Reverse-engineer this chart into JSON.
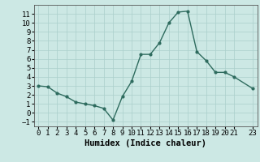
{
  "x": [
    0,
    1,
    2,
    3,
    4,
    5,
    6,
    7,
    8,
    9,
    10,
    11,
    12,
    13,
    14,
    15,
    16,
    17,
    18,
    19,
    20,
    21,
    23
  ],
  "y": [
    3.0,
    2.9,
    2.2,
    1.8,
    1.2,
    1.0,
    0.8,
    0.5,
    -0.8,
    1.8,
    3.5,
    6.5,
    6.5,
    7.8,
    10.0,
    11.2,
    11.3,
    6.8,
    5.8,
    4.5,
    4.5,
    4.0,
    2.7
  ],
  "line_color": "#2e6b5e",
  "marker": "o",
  "marker_size": 2.0,
  "linewidth": 1.0,
  "xlabel": "Humidex (Indice chaleur)",
  "xlim": [
    -0.5,
    23.5
  ],
  "ylim": [
    -1.5,
    12.0
  ],
  "yticks": [
    -1,
    0,
    1,
    2,
    3,
    4,
    5,
    6,
    7,
    8,
    9,
    10,
    11
  ],
  "xticks": [
    0,
    1,
    2,
    3,
    4,
    5,
    6,
    7,
    8,
    9,
    10,
    11,
    12,
    13,
    14,
    15,
    16,
    17,
    18,
    19,
    20,
    21,
    23
  ],
  "bg_color": "#cce8e4",
  "grid_color": "#aacfcb",
  "tick_fontsize": 6.5,
  "label_fontsize": 7.5
}
